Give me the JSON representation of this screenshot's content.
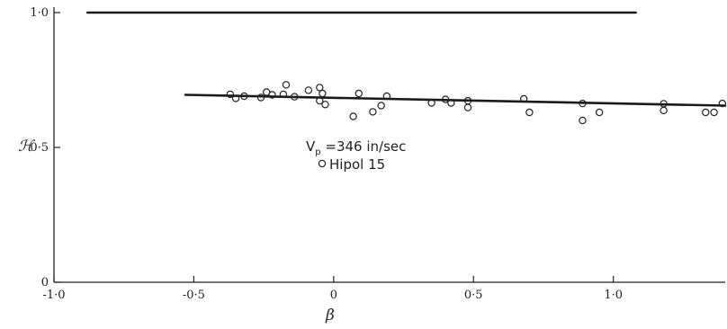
{
  "chart_data": {
    "type": "scatter",
    "title": "",
    "xlabel": "β",
    "ylabel": "ℋ",
    "xlim": [
      -1.0,
      1.4
    ],
    "ylim": [
      0,
      1.0
    ],
    "grid": false,
    "x_ticks": [
      {
        "value": -1.0,
        "label": "-1·0"
      },
      {
        "value": -0.5,
        "label": "-0·5"
      },
      {
        "value": 0,
        "label": "0"
      },
      {
        "value": 0.5,
        "label": "0·5"
      },
      {
        "value": 1.0,
        "label": "1·0"
      }
    ],
    "y_ticks": [
      {
        "value": 0,
        "label": "0"
      },
      {
        "value": 0.5,
        "label": "0·5"
      },
      {
        "value": 1.0,
        "label": "1·0"
      }
    ],
    "annotation": {
      "line1_main": "V",
      "line1_sub": "p",
      "line1_rest": " =346 in/sec",
      "legend_label": "Hipol 15"
    },
    "lines": [
      {
        "x": [
          -0.88,
          1.08
        ],
        "y": [
          1.0,
          1.0
        ]
      },
      {
        "x": [
          -0.53,
          1.4
        ],
        "y": [
          0.695,
          0.655
        ]
      }
    ],
    "series": [
      {
        "marker": "open-circle",
        "points": [
          [
            -0.37,
            0.697
          ],
          [
            -0.35,
            0.682
          ],
          [
            -0.32,
            0.69
          ],
          [
            -0.26,
            0.685
          ],
          [
            -0.24,
            0.705
          ],
          [
            -0.22,
            0.695
          ],
          [
            -0.18,
            0.697
          ],
          [
            -0.17,
            0.732
          ],
          [
            -0.14,
            0.688
          ],
          [
            -0.09,
            0.712
          ],
          [
            -0.05,
            0.722
          ],
          [
            -0.05,
            0.673
          ],
          [
            -0.04,
            0.7
          ],
          [
            -0.03,
            0.659
          ],
          [
            0.07,
            0.615
          ],
          [
            0.09,
            0.7
          ],
          [
            0.14,
            0.632
          ],
          [
            0.17,
            0.655
          ],
          [
            0.19,
            0.69
          ],
          [
            0.35,
            0.665
          ],
          [
            0.4,
            0.678
          ],
          [
            0.42,
            0.665
          ],
          [
            0.48,
            0.673
          ],
          [
            0.48,
            0.648
          ],
          [
            0.68,
            0.68
          ],
          [
            0.7,
            0.63
          ],
          [
            0.89,
            0.6
          ],
          [
            0.89,
            0.663
          ],
          [
            0.95,
            0.63
          ],
          [
            1.18,
            0.662
          ],
          [
            1.18,
            0.637
          ],
          [
            1.33,
            0.63
          ],
          [
            1.36,
            0.63
          ],
          [
            1.39,
            0.663
          ]
        ]
      }
    ]
  }
}
